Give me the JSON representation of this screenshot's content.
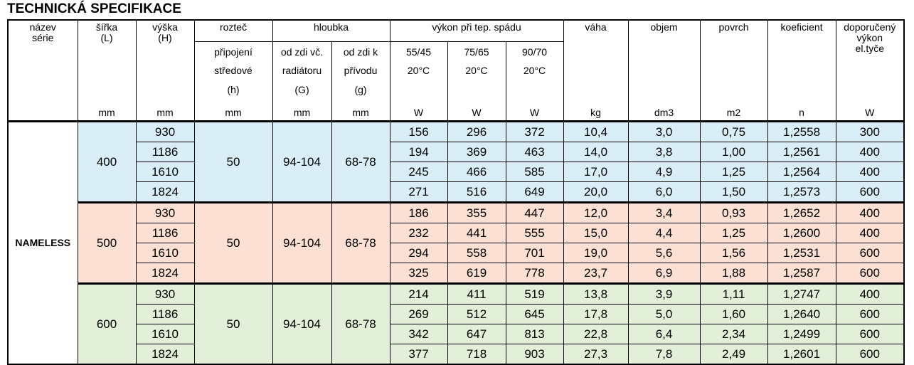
{
  "title": "TECHNICKÁ SPECIFIKACE",
  "header": {
    "series": [
      "název",
      "série"
    ],
    "width": [
      "šířka",
      "(L)"
    ],
    "height": [
      "výška",
      "(H)"
    ],
    "spacing": "rozteč",
    "spacing_sub": [
      "připojení",
      "středové",
      "(h)"
    ],
    "depth": "hloubka",
    "depth_radiator": [
      "od zdi vč.",
      "radiátoru",
      "(G)"
    ],
    "depth_inlet": [
      "od zdi k",
      "přívodu",
      "(g)"
    ],
    "output": "výkon při tep.  spádu",
    "output_cols": [
      [
        "55/45",
        "20°C"
      ],
      [
        "75/65",
        "20°C"
      ],
      [
        "90/70",
        "20°C"
      ]
    ],
    "weight": "váha",
    "volume": "objem",
    "surface": "povrch",
    "coefficient": "koeficient",
    "rod": [
      "doporučený",
      "výkon",
      "el.tyče"
    ],
    "units": [
      "mm",
      "mm",
      "mm",
      "mm",
      "mm",
      "W",
      "W",
      "W",
      "kg",
      "dm3",
      "m2",
      "n",
      "W"
    ]
  },
  "table": {
    "series": "NAMELESS",
    "groups": [
      {
        "width": "400",
        "spacing": "50",
        "depth_radiator": "94-104",
        "depth_inlet": "68-78",
        "rows": [
          [
            "930",
            "156",
            "296",
            "372",
            "10,4",
            "3,0",
            "0,75",
            "1,2558",
            "300"
          ],
          [
            "1186",
            "194",
            "369",
            "463",
            "14,0",
            "3,8",
            "1,00",
            "1,2561",
            "400"
          ],
          [
            "1610",
            "245",
            "466",
            "585",
            "17,0",
            "4,9",
            "1,25",
            "1,2564",
            "400"
          ],
          [
            "1824",
            "271",
            "516",
            "649",
            "20,0",
            "6,0",
            "1,50",
            "1,2573",
            "600"
          ]
        ]
      },
      {
        "width": "500",
        "spacing": "50",
        "depth_radiator": "94-104",
        "depth_inlet": "68-78",
        "rows": [
          [
            "930",
            "186",
            "355",
            "447",
            "12,0",
            "3,4",
            "0,93",
            "1,2652",
            "400"
          ],
          [
            "1186",
            "232",
            "441",
            "555",
            "15,0",
            "4,4",
            "1,25",
            "1,2600",
            "400"
          ],
          [
            "1610",
            "294",
            "558",
            "701",
            "19,0",
            "5,6",
            "1,56",
            "1,2531",
            "600"
          ],
          [
            "1824",
            "325",
            "619",
            "778",
            "23,7",
            "6,9",
            "1,88",
            "1,2587",
            "600"
          ]
        ]
      },
      {
        "width": "600",
        "spacing": "50",
        "depth_radiator": "94-104",
        "depth_inlet": "68-78",
        "rows": [
          [
            "930",
            "214",
            "411",
            "519",
            "13,8",
            "3,9",
            "1,11",
            "1,2747",
            "400"
          ],
          [
            "1186",
            "269",
            "512",
            "645",
            "17,8",
            "5,0",
            "1,60",
            "1,2640",
            "600"
          ],
          [
            "1610",
            "342",
            "647",
            "813",
            "22,8",
            "6,4",
            "2,34",
            "1,2499",
            "600"
          ],
          [
            "1824",
            "377",
            "718",
            "903",
            "27,3",
            "7,8",
            "2,49",
            "1,2601",
            "600"
          ]
        ]
      }
    ]
  }
}
